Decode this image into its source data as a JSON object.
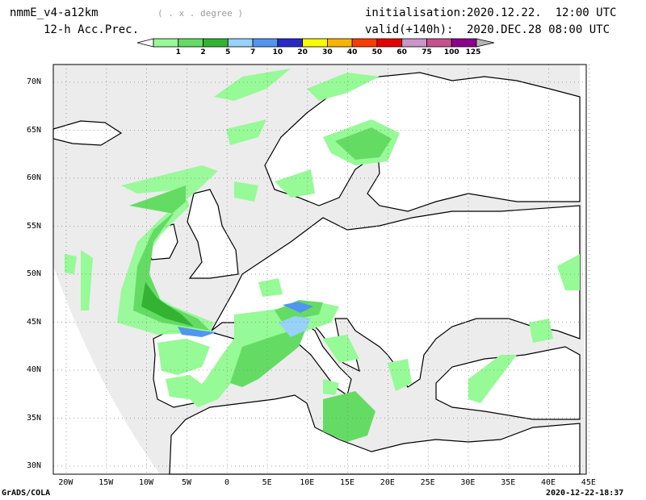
{
  "header": {
    "model": "nmmE_v4-a12km",
    "grid_note": "( . x . degree )",
    "field": "12-h Acc.Prec.",
    "init_label": "initialisation:",
    "init_value": "2020.12.22.  12:00 UTC",
    "valid_label": "valid(+140h):",
    "valid_value": "2020.DEC.28 08:00 UTC"
  },
  "colorbar": {
    "levels": [
      "1",
      "2",
      "5",
      "7",
      "10",
      "20",
      "30",
      "40",
      "50",
      "60",
      "75",
      "100",
      "125"
    ],
    "colors": [
      "#96fa96",
      "#64dc64",
      "#32b432",
      "#96d2fa",
      "#5096f0",
      "#2828c8",
      "#fafa00",
      "#fab400",
      "#fa3c00",
      "#e60000",
      "#c896c8",
      "#c8508c",
      "#8c008c",
      "#b4b4b4"
    ]
  },
  "map": {
    "lat_labels": [
      "70N",
      "65N",
      "60N",
      "55N",
      "50N",
      "45N",
      "40N",
      "35N",
      "30N"
    ],
    "lon_labels": [
      "20W",
      "15W",
      "10W",
      "5W",
      "0",
      "5E",
      "10E",
      "15E",
      "20E",
      "25E",
      "30E",
      "35E",
      "40E",
      "45E"
    ],
    "land_color": "#ffffff",
    "sea_color": "#ececec"
  },
  "footer": {
    "left": "GrADS/COLA",
    "right": "2020-12-22-18:37"
  }
}
